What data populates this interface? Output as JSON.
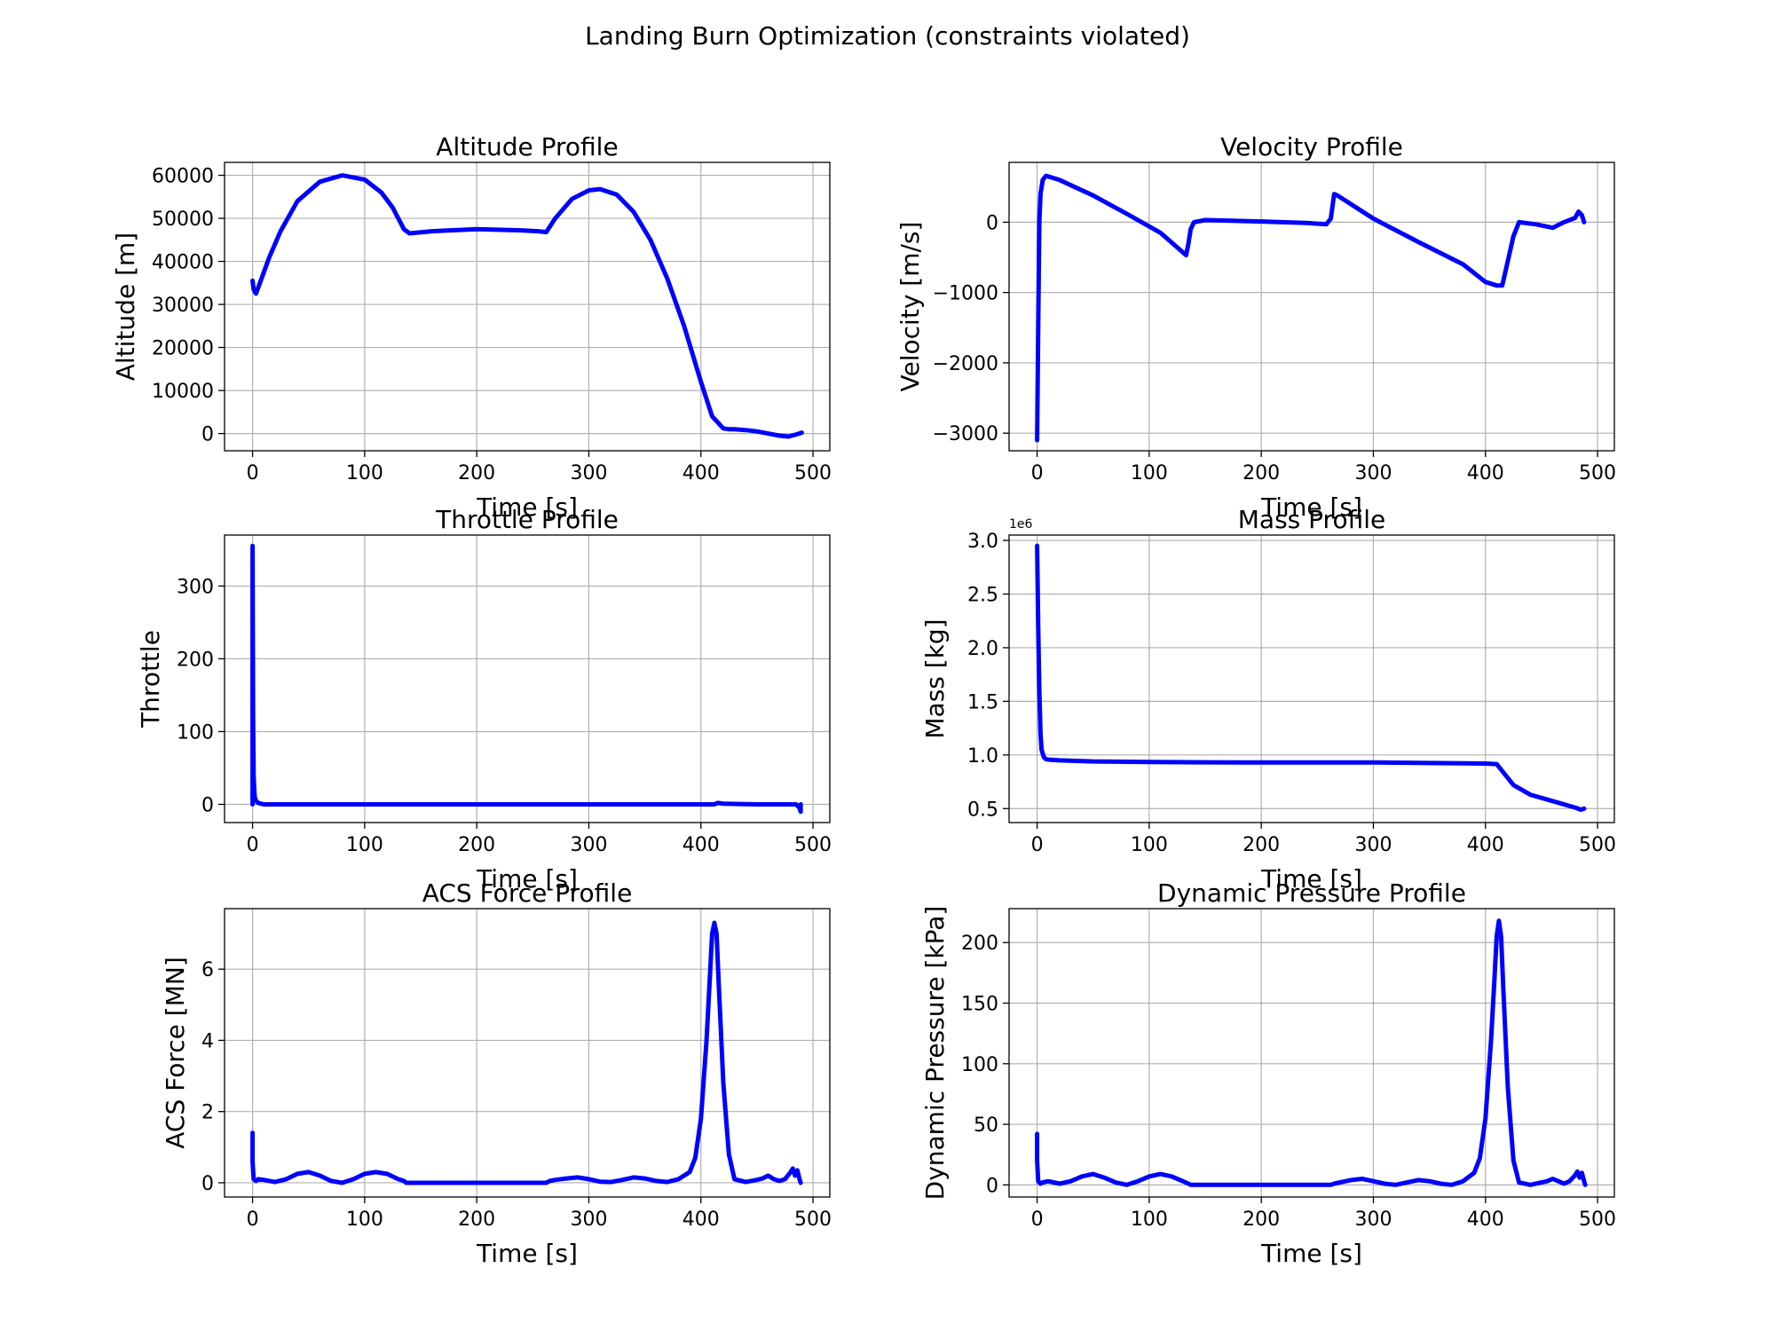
{
  "figure": {
    "title": "Landing Burn Optimization (constraints violated)"
  },
  "colors": {
    "line": "#0000ff",
    "grid": "#b0b0b0",
    "axes": "#000000"
  },
  "chart_data": [
    {
      "type": "line",
      "title": "Altitude Profile",
      "xlabel": "Time [s]",
      "ylabel": "Altitude [m]",
      "xlim": [
        -25,
        515
      ],
      "ylim": [
        -4000,
        63000
      ],
      "xticks": [
        0,
        100,
        200,
        300,
        400,
        500
      ],
      "yticks": [
        0,
        10000,
        20000,
        30000,
        40000,
        50000,
        60000
      ],
      "ytick_labels": [
        "0",
        "10000",
        "20000",
        "30000",
        "40000",
        "50000",
        "60000"
      ],
      "grid": true,
      "series": [
        {
          "x": [
            0,
            1,
            3,
            8,
            15,
            25,
            40,
            60,
            80,
            100,
            115,
            125,
            130,
            135,
            140,
            160,
            200,
            240,
            255,
            262,
            270,
            285,
            300,
            310,
            325,
            340,
            355,
            370,
            385,
            400,
            410,
            420,
            425,
            430,
            440,
            450,
            460,
            470,
            478,
            485,
            490
          ],
          "y": [
            35500,
            33500,
            32500,
            36000,
            41000,
            47000,
            54000,
            58500,
            60000,
            59000,
            56000,
            52500,
            50000,
            47500,
            46500,
            47000,
            47500,
            47200,
            47000,
            46800,
            50000,
            54500,
            56500,
            56800,
            55500,
            51500,
            45000,
            36000,
            25000,
            12000,
            4000,
            1200,
            1000,
            1000,
            800,
            500,
            0,
            -500,
            -700,
            -200,
            200
          ]
        }
      ]
    },
    {
      "type": "line",
      "title": "Velocity Profile",
      "xlabel": "Time [s]",
      "ylabel": "Velocity [m/s]",
      "xlim": [
        -25,
        515
      ],
      "ylim": [
        -3250,
        850
      ],
      "xticks": [
        0,
        100,
        200,
        300,
        400,
        500
      ],
      "yticks": [
        -3000,
        -2000,
        -1000,
        0
      ],
      "ytick_labels": [
        "−3000",
        "−2000",
        "−1000",
        "0"
      ],
      "grid": true,
      "series": [
        {
          "x": [
            0,
            1,
            2,
            3,
            5,
            8,
            20,
            50,
            80,
            110,
            133,
            135,
            137,
            140,
            150,
            200,
            240,
            258,
            262,
            265,
            268,
            300,
            340,
            380,
            400,
            410,
            415,
            420,
            425,
            430,
            445,
            460,
            470,
            480,
            483,
            486,
            488
          ],
          "y": [
            -3100,
            -1500,
            0,
            400,
            600,
            660,
            600,
            380,
            120,
            -150,
            -470,
            -300,
            -100,
            0,
            30,
            10,
            -10,
            -30,
            50,
            400,
            380,
            50,
            -280,
            -600,
            -850,
            -900,
            -900,
            -550,
            -200,
            0,
            -30,
            -80,
            0,
            60,
            150,
            100,
            0
          ]
        }
      ]
    },
    {
      "type": "line",
      "title": "Throttle Profile",
      "xlabel": "Time [s]",
      "ylabel": "Throttle",
      "xlim": [
        -25,
        515
      ],
      "ylim": [
        -25,
        370
      ],
      "xticks": [
        0,
        100,
        200,
        300,
        400,
        500
      ],
      "yticks": [
        0,
        100,
        200,
        300
      ],
      "ytick_labels": [
        "0",
        "100",
        "200",
        "300"
      ],
      "grid": true,
      "series": [
        {
          "x": [
            0,
            0,
            0.5,
            1,
            1.5,
            2,
            3,
            5,
            10,
            50,
            100,
            200,
            300,
            400,
            412,
            415,
            420,
            450,
            480,
            485,
            488,
            489,
            489
          ],
          "y": [
            0,
            355,
            120,
            40,
            20,
            10,
            5,
            2,
            0,
            0,
            0,
            0,
            0,
            0,
            0,
            2,
            1,
            0,
            0,
            0,
            -5,
            -10,
            0
          ]
        }
      ]
    },
    {
      "type": "line",
      "title": "Mass Profile",
      "xlabel": "Time [s]",
      "ylabel": "Mass [kg]",
      "axis_multiplier": "1e6",
      "xlim": [
        -25,
        515
      ],
      "ylim": [
        0.37,
        3.05
      ],
      "xticks": [
        0,
        100,
        200,
        300,
        400,
        500
      ],
      "yticks": [
        0.5,
        1.0,
        1.5,
        2.0,
        2.5,
        3.0
      ],
      "ytick_labels": [
        "0.5",
        "1.0",
        "1.5",
        "2.0",
        "2.5",
        "3.0"
      ],
      "grid": true,
      "series": [
        {
          "x": [
            0,
            1,
            2,
            3,
            4,
            6,
            8,
            12,
            20,
            50,
            100,
            150,
            200,
            250,
            300,
            350,
            400,
            410,
            415,
            425,
            440,
            460,
            480,
            485,
            488
          ],
          "y": [
            2.95,
            2.2,
            1.6,
            1.2,
            1.05,
            0.98,
            0.96,
            0.955,
            0.95,
            0.94,
            0.935,
            0.932,
            0.93,
            0.93,
            0.93,
            0.925,
            0.92,
            0.915,
            0.85,
            0.72,
            0.63,
            0.57,
            0.51,
            0.49,
            0.5
          ]
        }
      ]
    },
    {
      "type": "line",
      "title": "ACS Force Profile",
      "xlabel": "Time [s]",
      "ylabel": "ACS Force [MN]",
      "xlim": [
        -25,
        515
      ],
      "ylim": [
        -0.4,
        7.7
      ],
      "xticks": [
        0,
        100,
        200,
        300,
        400,
        500
      ],
      "yticks": [
        0,
        2,
        4,
        6
      ],
      "ytick_labels": [
        "0",
        "2",
        "4",
        "6"
      ],
      "grid": true,
      "series": [
        {
          "x": [
            0,
            0,
            1,
            3,
            5,
            10,
            20,
            30,
            40,
            50,
            60,
            70,
            80,
            90,
            100,
            110,
            120,
            130,
            135,
            137,
            200,
            262,
            265,
            270,
            280,
            290,
            300,
            310,
            320,
            330,
            340,
            350,
            360,
            370,
            380,
            390,
            395,
            400,
            405,
            408,
            410,
            412,
            414,
            416,
            420,
            425,
            430,
            440,
            450,
            455,
            460,
            465,
            470,
            475,
            480,
            482,
            484,
            486,
            488,
            489
          ],
          "y": [
            1.4,
            0.6,
            0.1,
            0.05,
            0.1,
            0.08,
            0.02,
            0.1,
            0.25,
            0.3,
            0.2,
            0.05,
            0.0,
            0.1,
            0.25,
            0.3,
            0.25,
            0.1,
            0.05,
            0.0,
            0.0,
            0.0,
            0.05,
            0.08,
            0.12,
            0.15,
            0.1,
            0.03,
            0.02,
            0.08,
            0.15,
            0.12,
            0.05,
            0.02,
            0.1,
            0.3,
            0.7,
            1.8,
            4.0,
            5.8,
            7.0,
            7.3,
            7.0,
            5.5,
            2.8,
            0.8,
            0.1,
            0.02,
            0.08,
            0.12,
            0.2,
            0.1,
            0.05,
            0.1,
            0.3,
            0.4,
            0.2,
            0.35,
            0.1,
            0.0
          ]
        }
      ]
    },
    {
      "type": "line",
      "title": "Dynamic Pressure Profile",
      "xlabel": "Time [s]",
      "ylabel": "Dynamic Pressure [kPa]",
      "xlim": [
        -25,
        515
      ],
      "ylim": [
        -10,
        228
      ],
      "xticks": [
        0,
        100,
        200,
        300,
        400,
        500
      ],
      "yticks": [
        0,
        50,
        100,
        150,
        200
      ],
      "ytick_labels": [
        "0",
        "50",
        "100",
        "150",
        "200"
      ],
      "grid": true,
      "series": [
        {
          "x": [
            0,
            0,
            1,
            3,
            5,
            10,
            20,
            30,
            40,
            50,
            60,
            70,
            80,
            90,
            100,
            110,
            120,
            130,
            135,
            137,
            200,
            262,
            265,
            270,
            280,
            290,
            300,
            310,
            320,
            330,
            340,
            350,
            360,
            370,
            380,
            390,
            395,
            400,
            405,
            408,
            410,
            412,
            414,
            416,
            420,
            425,
            430,
            440,
            450,
            455,
            460,
            465,
            470,
            475,
            480,
            482,
            484,
            486,
            488,
            489
          ],
          "y": [
            42,
            20,
            3,
            1,
            2,
            3,
            1,
            3,
            7,
            9,
            6,
            2,
            0,
            3,
            7,
            9,
            7,
            3,
            1,
            0,
            0,
            0,
            1,
            2,
            4,
            5,
            3,
            1,
            0,
            2,
            4,
            3,
            1,
            0,
            3,
            10,
            22,
            55,
            120,
            170,
            205,
            218,
            205,
            160,
            80,
            20,
            2,
            0,
            2,
            3,
            5,
            3,
            1,
            3,
            8,
            11,
            6,
            10,
            3,
            0
          ]
        }
      ]
    }
  ]
}
